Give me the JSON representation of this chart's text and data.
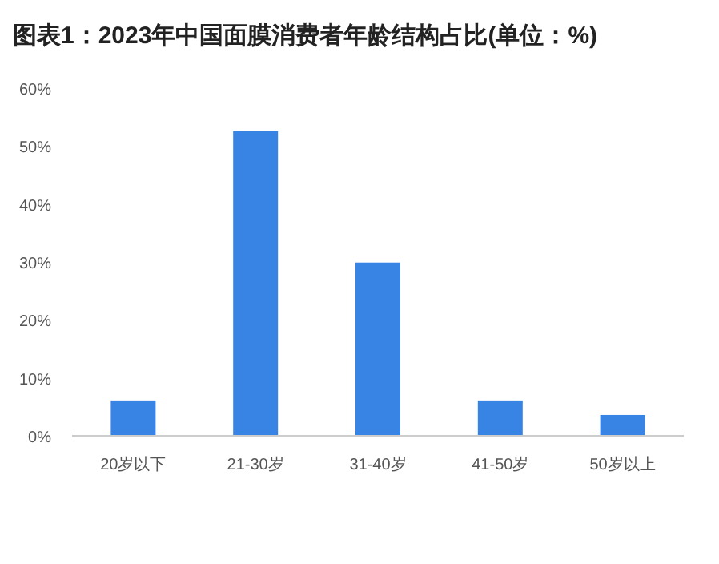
{
  "chart_data": {
    "type": "bar",
    "title": "图表1：2023年中国面膜消费者年龄结构占比(单位：%)",
    "categories": [
      "20岁以下",
      "21-30岁",
      "31-40岁",
      "41-50岁",
      "50岁以上"
    ],
    "values": [
      6.1,
      52.6,
      29.9,
      6.1,
      3.6
    ],
    "color": "#3784e4",
    "ylim": [
      0,
      60
    ],
    "yticks": [
      {
        "value": 0,
        "label": "0%"
      },
      {
        "value": 10,
        "label": "10%"
      },
      {
        "value": 20,
        "label": "20%"
      },
      {
        "value": 30,
        "label": "30%"
      },
      {
        "value": 40,
        "label": "40%"
      },
      {
        "value": 50,
        "label": "50%"
      },
      {
        "value": 60,
        "label": "60%"
      }
    ],
    "grid": false
  }
}
